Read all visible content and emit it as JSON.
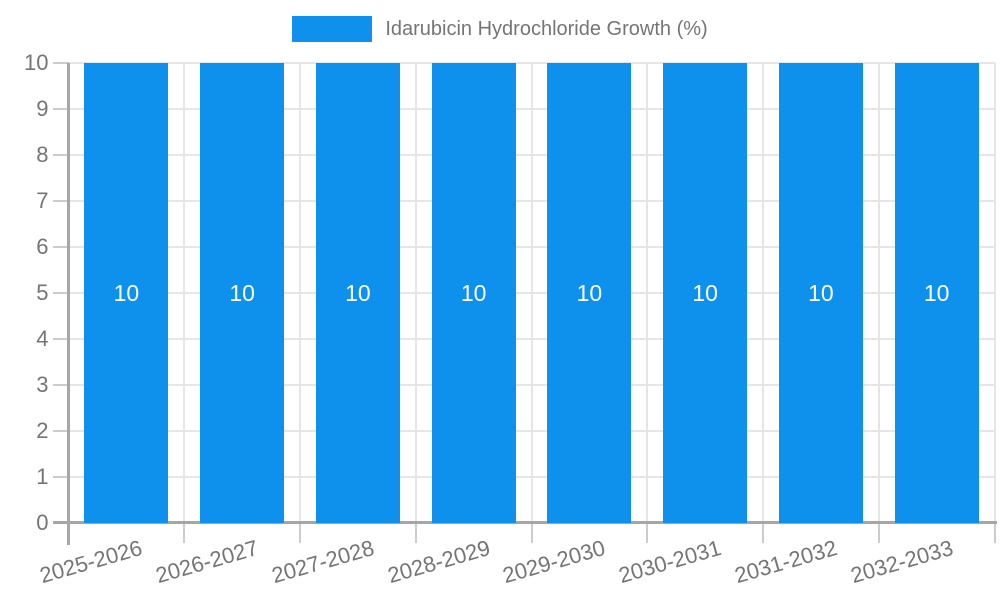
{
  "legend": {
    "label": "Idarubicin Hydrochloride Growth (%)"
  },
  "chart_data": {
    "type": "bar",
    "title": "",
    "xlabel": "",
    "ylabel": "",
    "categories": [
      "2025-2026",
      "2026-2027",
      "2027-2028",
      "2028-2029",
      "2029-2030",
      "2030-2031",
      "2031-2032",
      "2032-2033"
    ],
    "series": [
      {
        "name": "Idarubicin Hydrochloride Growth (%)",
        "values": [
          10,
          10,
          10,
          10,
          10,
          10,
          10,
          10
        ]
      }
    ],
    "bar_value_labels": [
      "10",
      "10",
      "10",
      "10",
      "10",
      "10",
      "10",
      "10"
    ],
    "ylim": [
      0,
      10
    ],
    "yticks": [
      0,
      1,
      2,
      3,
      4,
      5,
      6,
      7,
      8,
      9,
      10
    ],
    "grid": true,
    "legend_position": "top-center",
    "x_label_rotation_deg": -16,
    "colors": {
      "bar": "#0e90ed",
      "bar_label": "#ffffff",
      "grid": "#e6e6e6",
      "axis": "#a6a6a6",
      "tick": "#cccccc",
      "text": "#757575"
    }
  }
}
